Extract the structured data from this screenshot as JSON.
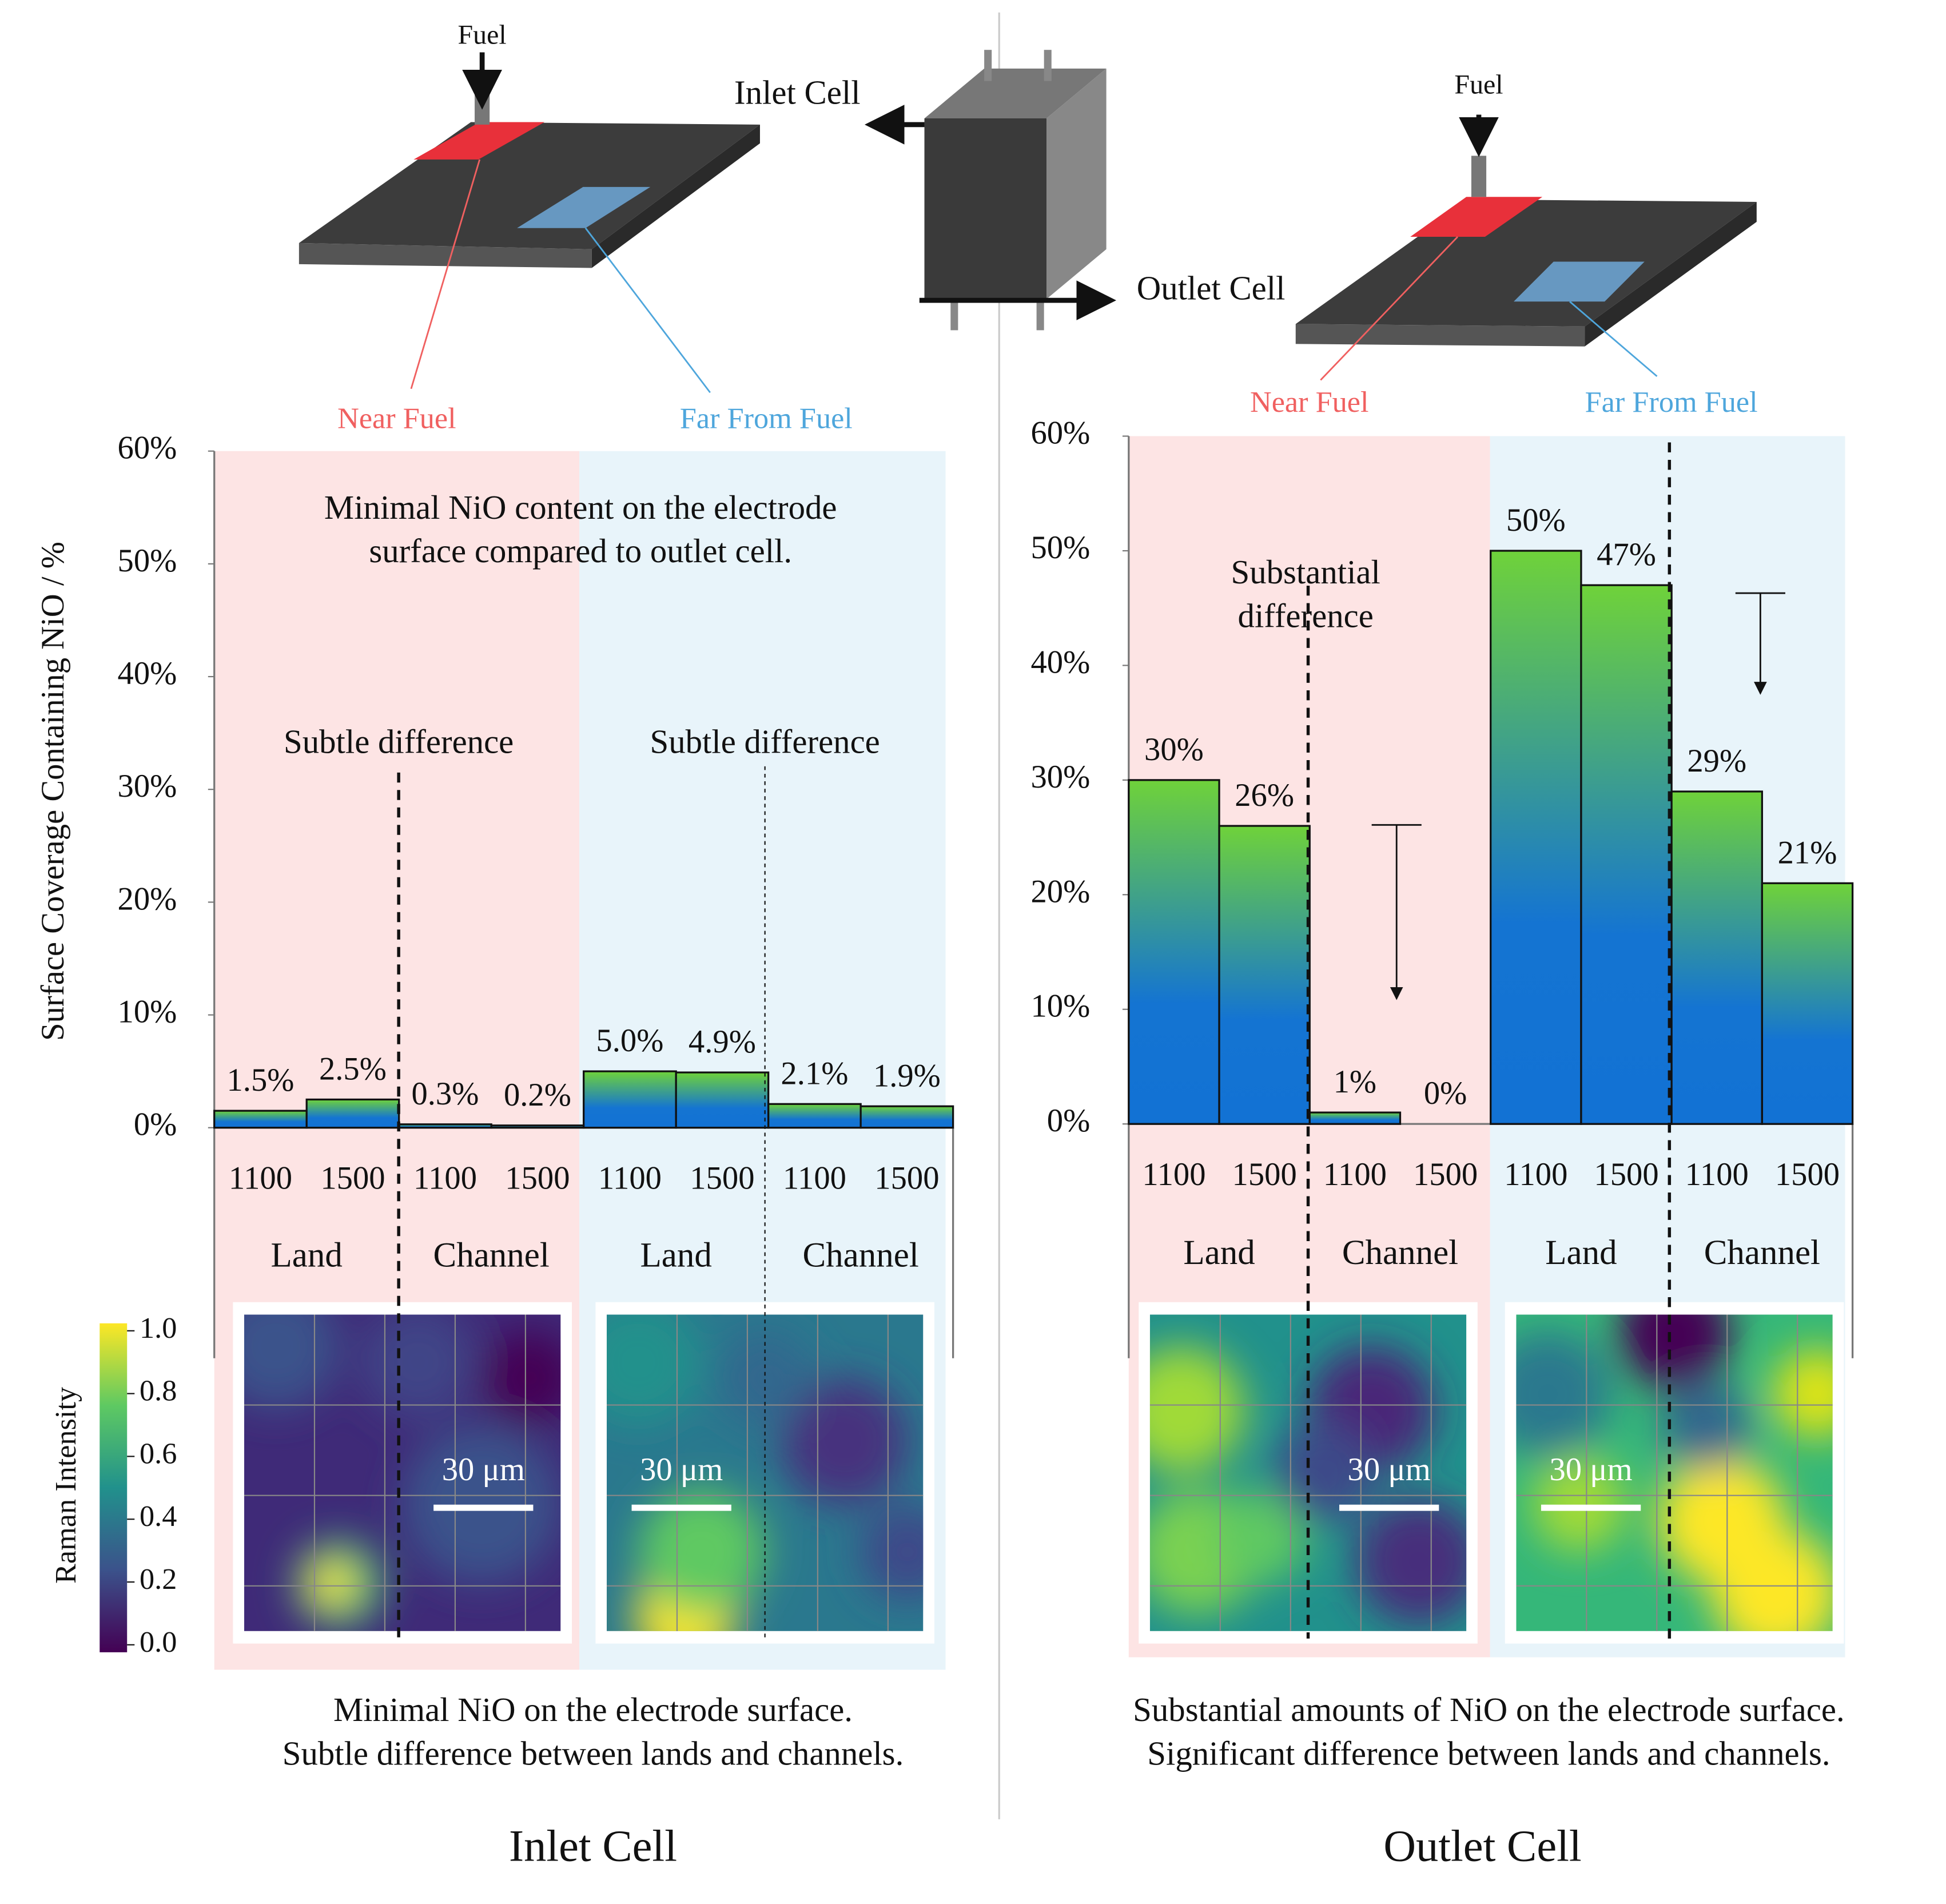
{
  "diagram": {
    "fuel_inlet": "Fuel",
    "fuel_outlet": "Fuel",
    "stack_inlet": "Inlet Cell",
    "stack_outlet": "Outlet Cell"
  },
  "chart_data": [
    {
      "type": "bar",
      "title": "Inlet Cell",
      "y_label": "Surface Coverage Containing NiO / %",
      "regions": [
        "Near Fuel",
        "Far From Fuel"
      ],
      "region_colors": [
        "#f06060",
        "#4ea6dc"
      ],
      "groups": [
        "Land",
        "Channel",
        "Land",
        "Channel"
      ],
      "categories": [
        "1100",
        "1500",
        "1100",
        "1500",
        "1100",
        "1500",
        "1100",
        "1500"
      ],
      "values": [
        1.5,
        2.5,
        0.3,
        0.2,
        5.0,
        4.9,
        2.1,
        1.9
      ],
      "value_labels": [
        "1.5%",
        "2.5%",
        "0.3%",
        "0.2%",
        "5.0%",
        "4.9%",
        "2.1%",
        "1.9%"
      ],
      "ylim": [
        0,
        60
      ],
      "yticks": [
        {
          "value": 0,
          "label": "0%"
        },
        {
          "value": 10,
          "label": "10%"
        },
        {
          "value": 20,
          "label": "20%"
        },
        {
          "value": 30,
          "label": "30%"
        },
        {
          "value": 40,
          "label": "40%"
        },
        {
          "value": 50,
          "label": "50%"
        },
        {
          "value": 60,
          "label": "60%"
        }
      ],
      "annotations": [
        {
          "text": [
            "Minimal NiO content on the electrode",
            "surface compared to outlet cell."
          ]
        },
        {
          "text": [
            "Subtle difference"
          ]
        },
        {
          "text": [
            "Subtle difference"
          ]
        }
      ],
      "caption": [
        "Minimal NiO on the electrode surface.",
        "Subtle difference between lands and channels."
      ]
    },
    {
      "type": "bar",
      "title": "Outlet Cell",
      "regions": [
        "Near Fuel",
        "Far From Fuel"
      ],
      "region_colors": [
        "#f06060",
        "#4ea6dc"
      ],
      "groups": [
        "Land",
        "Channel",
        "Land",
        "Channel"
      ],
      "categories": [
        "1100",
        "1500",
        "1100",
        "1500",
        "1100",
        "1500",
        "1100",
        "1500"
      ],
      "values": [
        30,
        26,
        1,
        0,
        50,
        47,
        29,
        21
      ],
      "value_labels": [
        "30%",
        "26%",
        "1%",
        "0%",
        "50%",
        "47%",
        "29%",
        "21%"
      ],
      "ylim": [
        0,
        60
      ],
      "yticks": [
        {
          "value": 0,
          "label": "0%"
        },
        {
          "value": 10,
          "label": "10%"
        },
        {
          "value": 20,
          "label": "20%"
        },
        {
          "value": 30,
          "label": "30%"
        },
        {
          "value": 40,
          "label": "40%"
        },
        {
          "value": 50,
          "label": "50%"
        },
        {
          "value": 60,
          "label": "60%"
        }
      ],
      "annotations": [
        {
          "text": [
            "Substantial",
            "difference"
          ]
        }
      ],
      "caption": [
        "Substantial amounts of  NiO on the electrode surface.",
        "Significant difference between lands and channels."
      ]
    }
  ],
  "colorbar": {
    "label": "Raman Intensity",
    "lim": [
      0,
      1
    ],
    "ticks": [
      {
        "value": 1,
        "label": "1.0"
      },
      {
        "value": 0.8,
        "label": "0.8"
      },
      {
        "value": 0.6,
        "label": "0.6"
      },
      {
        "value": 0.4,
        "label": "0.4"
      },
      {
        "value": 0.2,
        "label": "0.2"
      },
      {
        "value": 0,
        "label": "0.0"
      }
    ]
  },
  "scale_bar": "30 μm"
}
